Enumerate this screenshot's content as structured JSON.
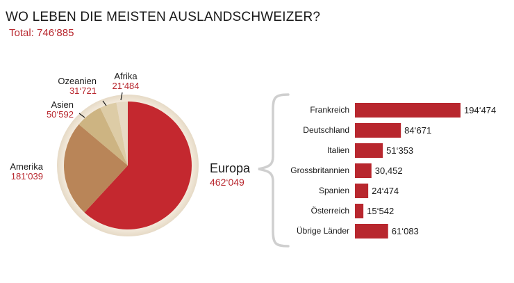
{
  "title": "WO LEBEN DIE MEISTEN AUSLANDSCHWEIZER?",
  "total": "Total: 746‘885",
  "chart_data": [
    {
      "type": "pie",
      "slices": [
        {
          "name": "Europa",
          "value_label": "462‘049",
          "value": 462049,
          "color": "#c4282f"
        },
        {
          "name": "Amerika",
          "value_label": "181‘039",
          "value": 181039,
          "color": "#b98558"
        },
        {
          "name": "Asien",
          "value_label": "50‘592",
          "value": 50592,
          "color": "#cdb482"
        },
        {
          "name": "Ozeanien",
          "value_label": "31‘721",
          "value": 31721,
          "color": "#ddcca6"
        },
        {
          "name": "Afrika",
          "value_label": "21‘484",
          "value": 21484,
          "color": "#e7dac4"
        }
      ]
    },
    {
      "type": "bar",
      "orientation": "horizontal",
      "color": "#b8272e",
      "categories": [
        "Frankreich",
        "Deutschland",
        "Italien",
        "Grossbritannien",
        "Spanien",
        "Österreich",
        "Übrige Länder"
      ],
      "values": [
        194474,
        84671,
        51353,
        30452,
        24474,
        15542,
        61083
      ],
      "value_labels": [
        "194‘474",
        "84‘671",
        "51‘353",
        "30,452",
        "24‘474",
        "15‘542",
        "61‘083"
      ]
    }
  ]
}
